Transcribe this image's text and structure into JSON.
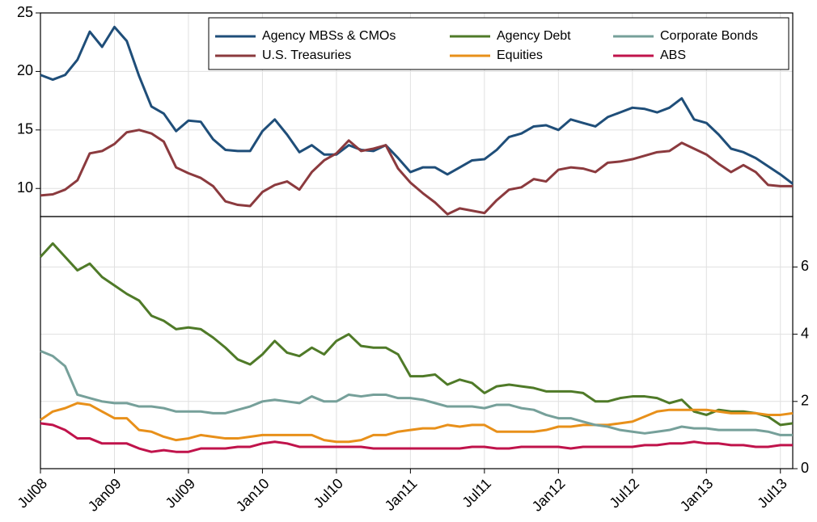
{
  "chart_data": {
    "type": "line",
    "categories": [
      "Jul08",
      null,
      null,
      null,
      null,
      null,
      "Jan09",
      null,
      null,
      null,
      null,
      null,
      "Jul09",
      null,
      null,
      null,
      null,
      null,
      "Jan10",
      null,
      null,
      null,
      null,
      null,
      "Jul10",
      null,
      null,
      null,
      null,
      null,
      "Jan11",
      null,
      null,
      null,
      null,
      null,
      "Jul11",
      null,
      null,
      null,
      null,
      null,
      "Jan12",
      null,
      null,
      null,
      null,
      null,
      "Jul12",
      null,
      null,
      null,
      null,
      null,
      "Jan13",
      null,
      null,
      null,
      null,
      null,
      "Jul13",
      null
    ],
    "ylim": [
      7.6,
      25
    ],
    "yticks": [
      10,
      15,
      20,
      25
    ],
    "y2lim": [
      0,
      7.5
    ],
    "y2ticks": [
      0,
      2,
      4,
      6
    ],
    "grid": true,
    "legend": "top-right",
    "series": [
      {
        "name": "Agency MBSs & CMOs",
        "color": "#1f4e79",
        "values": [
          19.7,
          19.3,
          19.7,
          21,
          23.4,
          22.1,
          23.8,
          22.6,
          19.6,
          17.0,
          16.4,
          14.9,
          15.8,
          15.7,
          14.2,
          13.3,
          13.2,
          13.2,
          14.9,
          15.9,
          14.6,
          13.1,
          13.7,
          12.9,
          12.9,
          13.7,
          13.3,
          13.2,
          13.7,
          12.6,
          11.4,
          11.8,
          11.8,
          11.2,
          11.8,
          12.4,
          12.5,
          13.3,
          14.4,
          14.7,
          15.3,
          15.4,
          15.0,
          15.9,
          15.6,
          15.3,
          16.1,
          16.5,
          16.9,
          16.8,
          16.5,
          16.9,
          17.7,
          15.9,
          15.6,
          14.6,
          13.4,
          13.1,
          12.6,
          11.9,
          11.2,
          10.4
        ]
      },
      {
        "name": "U.S. Treasuries",
        "color": "#8b3a3e",
        "values": [
          9.4,
          9.5,
          9.9,
          10.7,
          13.0,
          13.2,
          13.8,
          14.8,
          15.0,
          14.7,
          14.0,
          11.8,
          11.3,
          10.9,
          10.2,
          8.9,
          8.6,
          8.5,
          9.7,
          10.3,
          10.6,
          9.9,
          11.4,
          12.4,
          13.0,
          14.1,
          13.2,
          13.4,
          13.7,
          11.7,
          10.5,
          9.6,
          8.8,
          7.8,
          8.3,
          8.1,
          7.9,
          9.0,
          9.9,
          10.1,
          10.8,
          10.6,
          11.6,
          11.8,
          11.7,
          11.4,
          12.2,
          12.3,
          12.5,
          12.8,
          13.1,
          13.2,
          13.9,
          13.4,
          12.9,
          12.1,
          11.4,
          12.0,
          11.4,
          10.3,
          10.2,
          10.2
        ]
      },
      {
        "name": "Agency Debt",
        "color": "#4f7a28",
        "axis": "y2",
        "values": [
          6.3,
          6.7,
          6.3,
          5.9,
          6.1,
          5.7,
          5.45,
          5.2,
          5.0,
          4.55,
          4.4,
          4.15,
          4.2,
          4.15,
          3.9,
          3.6,
          3.25,
          3.1,
          3.4,
          3.8,
          3.45,
          3.35,
          3.6,
          3.4,
          3.8,
          4.0,
          3.65,
          3.6,
          3.6,
          3.4,
          2.75,
          2.75,
          2.8,
          2.5,
          2.65,
          2.55,
          2.25,
          2.45,
          2.5,
          2.45,
          2.4,
          2.3,
          2.3,
          2.3,
          2.25,
          2.0,
          2.0,
          2.1,
          2.15,
          2.15,
          2.1,
          1.95,
          2.05,
          1.7,
          1.6,
          1.75,
          1.7,
          1.7,
          1.65,
          1.55,
          1.3,
          1.35
        ]
      },
      {
        "name": "Equities",
        "color": "#e8901a",
        "axis": "y2",
        "values": [
          1.45,
          1.7,
          1.8,
          1.95,
          1.9,
          1.7,
          1.5,
          1.5,
          1.15,
          1.1,
          0.95,
          0.85,
          0.9,
          1.0,
          0.95,
          0.9,
          0.9,
          0.95,
          1.0,
          1.0,
          1.0,
          1.0,
          1.0,
          0.85,
          0.8,
          0.8,
          0.85,
          1.0,
          1.0,
          1.1,
          1.15,
          1.2,
          1.2,
          1.3,
          1.25,
          1.3,
          1.3,
          1.1,
          1.1,
          1.1,
          1.1,
          1.15,
          1.25,
          1.25,
          1.3,
          1.3,
          1.3,
          1.35,
          1.4,
          1.55,
          1.7,
          1.75,
          1.75,
          1.75,
          1.75,
          1.7,
          1.65,
          1.65,
          1.65,
          1.6,
          1.6,
          1.65
        ]
      },
      {
        "name": "Corporate Bonds",
        "color": "#76a09a",
        "axis": "y2",
        "values": [
          3.5,
          3.35,
          3.05,
          2.2,
          2.1,
          2.0,
          1.95,
          1.95,
          1.85,
          1.85,
          1.8,
          1.7,
          1.7,
          1.7,
          1.65,
          1.65,
          1.75,
          1.85,
          2.0,
          2.05,
          2.0,
          1.95,
          2.15,
          2.0,
          2.0,
          2.2,
          2.15,
          2.2,
          2.2,
          2.1,
          2.1,
          2.05,
          1.95,
          1.85,
          1.85,
          1.85,
          1.8,
          1.9,
          1.9,
          1.8,
          1.75,
          1.6,
          1.5,
          1.5,
          1.4,
          1.3,
          1.25,
          1.15,
          1.1,
          1.05,
          1.1,
          1.15,
          1.25,
          1.2,
          1.2,
          1.15,
          1.15,
          1.15,
          1.15,
          1.1,
          1.0,
          1.0
        ]
      },
      {
        "name": "ABS",
        "color": "#c0134b",
        "axis": "y2",
        "values": [
          1.35,
          1.3,
          1.15,
          0.9,
          0.9,
          0.75,
          0.75,
          0.75,
          0.6,
          0.5,
          0.55,
          0.5,
          0.5,
          0.6,
          0.6,
          0.6,
          0.65,
          0.65,
          0.75,
          0.8,
          0.75,
          0.65,
          0.65,
          0.65,
          0.65,
          0.65,
          0.65,
          0.6,
          0.6,
          0.6,
          0.6,
          0.6,
          0.6,
          0.6,
          0.6,
          0.65,
          0.65,
          0.6,
          0.6,
          0.65,
          0.65,
          0.65,
          0.65,
          0.6,
          0.65,
          0.65,
          0.65,
          0.65,
          0.65,
          0.7,
          0.7,
          0.75,
          0.75,
          0.8,
          0.75,
          0.75,
          0.7,
          0.7,
          0.65,
          0.65,
          0.7,
          0.7
        ]
      }
    ]
  }
}
